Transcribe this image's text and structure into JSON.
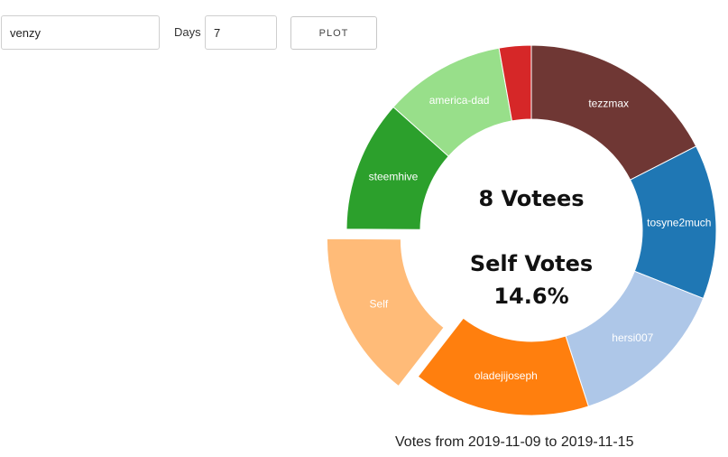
{
  "controls": {
    "user_value": "venzy",
    "days_label": "Days",
    "days_value": "7",
    "plot_label": "PLOT"
  },
  "chart_data": {
    "type": "pie",
    "categories": [
      "tezzmax",
      "tosyne2much",
      "hersi007",
      "oladejijoseph",
      "Self",
      "steemhive",
      "america-dad",
      ""
    ],
    "values": [
      17.5,
      13.5,
      14.0,
      15.5,
      14.6,
      11.5,
      10.6,
      2.8
    ],
    "colors": [
      "#6f3734",
      "#1f77b4",
      "#aec7e8",
      "#ff7f0e",
      "#ffbb78",
      "#2ca02c",
      "#98df8a",
      "#d62728"
    ],
    "highlighted": "Self",
    "center_count": "8 Votees",
    "center_title": "Self Votes",
    "center_value": "14.6%",
    "caption": "Votes from 2019-11-09 to 2019-11-15"
  }
}
